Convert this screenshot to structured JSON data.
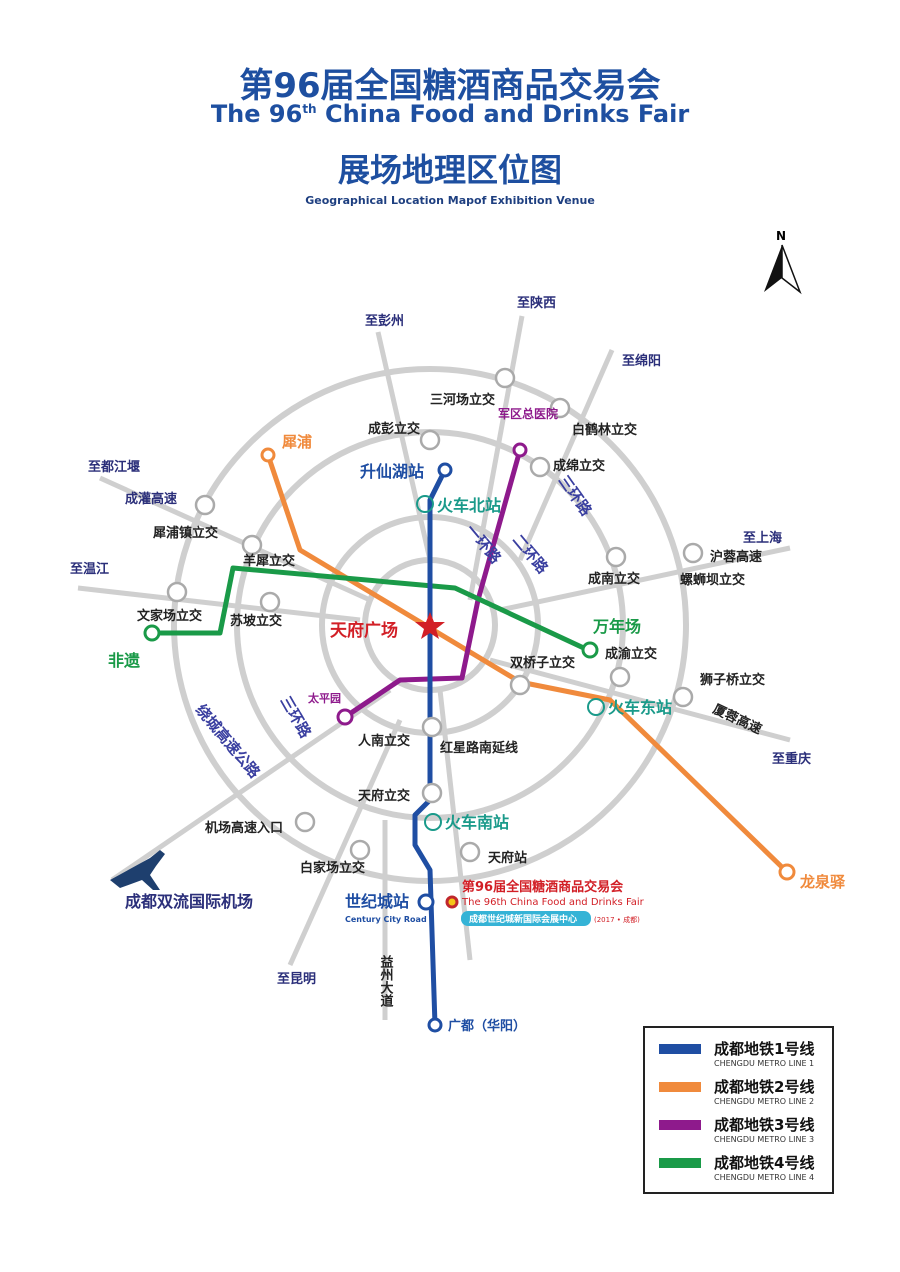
{
  "header": {
    "title_cn": "第96届全国糖酒商品交易会",
    "title_en": "The 96th China Food and Drinks Fair",
    "title_en_pre": "The 96",
    "title_en_sup": "th",
    "title_en_post": " China Food and Drinks Fair",
    "subtitle_cn": "展场地理区位图",
    "subtitle_en": "Geographical Location Mapof Exhibition Venue"
  },
  "compass": {
    "label": "N"
  },
  "colors": {
    "line1": "#1f4ea3",
    "line2": "#f08a3c",
    "line3": "#8e1a8c",
    "line4": "#1a9a48",
    "title": "#1e4fa0",
    "ring": "#c8c8c8"
  },
  "roads": [
    "至彭州",
    "至陕西",
    "至绵阳",
    "至都江堰",
    "成灌高速",
    "至温江",
    "至上海",
    "沪蓉高速",
    "至重庆",
    "厦蓉高速",
    "至昆明",
    "益州大道",
    "绕城高速公路",
    "三环路",
    "三环路",
    "一环路",
    "二环路",
    "红星路南延线"
  ],
  "interchanges": [
    "成彭立交",
    "三河场立交",
    "白鹤林立交",
    "成绵立交",
    "犀浦镇立交",
    "羊犀立交",
    "苏坡立交",
    "文家场立交",
    "成南立交",
    "螺蛳坝立交",
    "成渝立交",
    "双桥子立交",
    "狮子桥立交",
    "人南立交",
    "天府立交",
    "机场高速入口",
    "白家场立交",
    "天府站"
  ],
  "stations": {
    "shengxianhu": "升仙湖站",
    "north": "火车北站",
    "tianfu_square": "天府广场",
    "wannianchang": "万年场",
    "east": "火车东站",
    "south": "火车南站",
    "century_city": "世纪城站",
    "century_city_en": "Century City Road",
    "guangdu": "广都（华阳）",
    "xipu": "犀浦",
    "feiyi": "非遗",
    "hospital": "军区总医院",
    "taipingyuan": "太平园",
    "longquanyi": "龙泉驿",
    "airport": "成都双流国际机场"
  },
  "venue": {
    "title_cn": "第96届全国糖酒商品交易会",
    "title_en": "The 96th China Food and Drinks Fair",
    "badge": "成都世纪城新国际会展中心",
    "note": "(2017 • 成都)"
  },
  "legend": [
    {
      "cn": "成都地铁1号线",
      "en": "CHENGDU METRO LINE 1",
      "color": "#1f4ea3"
    },
    {
      "cn": "成都地铁2号线",
      "en": "CHENGDU METRO LINE 2",
      "color": "#f08a3c"
    },
    {
      "cn": "成都地铁3号线",
      "en": "CHENGDU METRO LINE 3",
      "color": "#8e1a8c"
    },
    {
      "cn": "成都地铁4号线",
      "en": "CHENGDU METRO LINE 4",
      "color": "#1a9a48"
    }
  ]
}
